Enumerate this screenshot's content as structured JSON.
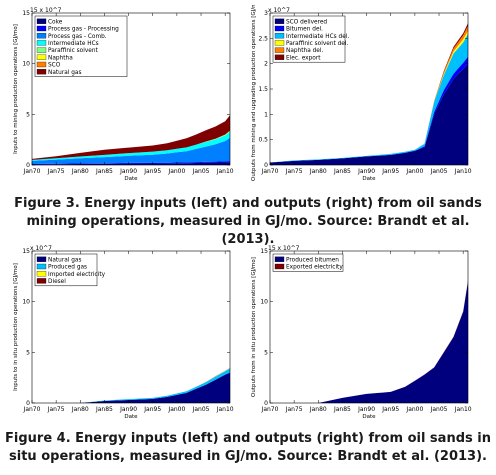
{
  "captions": {
    "figure3": "Figure 3. Energy inputs (left) and outputs (right) from oil sands mining operations, measured in GJ/mo. Source: Brandt et al. (2013).",
    "figure4": "Figure 4. Energy inputs (left) and outputs (right) from oil sands in situ operations, measured in GJ/mo. Source: Brandt et al. (2013)."
  },
  "chart_data": [
    {
      "type": "area",
      "id": "fig3-left",
      "xlabel": "Date",
      "ylabel": "Inputs to mining production operations [GJ/mo]",
      "exponent_label": "15 x 10^7",
      "xlim": [
        1970,
        2011
      ],
      "ylim": [
        0,
        15
      ],
      "y_ticks": [
        0,
        5,
        10,
        15
      ],
      "x_ticks": [
        "Jan70",
        "Jan75",
        "Jan80",
        "Jan85",
        "Jan90",
        "Jan95",
        "Jan00",
        "Jan05",
        "Jan10"
      ],
      "x": [
        1970,
        1975,
        1980,
        1985,
        1990,
        1995,
        1998,
        2000,
        2002,
        2004,
        2006,
        2008,
        2010,
        2011
      ],
      "series": [
        {
          "name": "Coke",
          "color": "#00007f",
          "values": [
            0.05,
            0.08,
            0.1,
            0.12,
            0.14,
            0.15,
            0.16,
            0.17,
            0.18,
            0.2,
            0.22,
            0.24,
            0.26,
            0.26
          ]
        },
        {
          "name": "Process gas - Processing",
          "color": "#0000ff",
          "values": [
            0.05,
            0.05,
            0.06,
            0.06,
            0.07,
            0.07,
            0.07,
            0.08,
            0.08,
            0.09,
            0.1,
            0.1,
            0.11,
            0.12
          ]
        },
        {
          "name": "Process gas - Comb.",
          "color": "#0080ff",
          "values": [
            0.3,
            0.4,
            0.5,
            0.6,
            0.7,
            0.8,
            0.9,
            1.0,
            1.1,
            1.3,
            1.5,
            1.7,
            2.0,
            2.3
          ]
        },
        {
          "name": "Intermediate HCs",
          "color": "#00ffff",
          "values": [
            0.1,
            0.14,
            0.18,
            0.22,
            0.26,
            0.3,
            0.32,
            0.35,
            0.38,
            0.42,
            0.46,
            0.5,
            0.55,
            0.6
          ]
        },
        {
          "name": "Paraffinic solvent",
          "color": "#7fff7f",
          "values": [
            0,
            0,
            0,
            0,
            0,
            0,
            0,
            0,
            0,
            0,
            0.02,
            0.03,
            0.04,
            0.05
          ]
        },
        {
          "name": "Naphtha",
          "color": "#ffff00",
          "values": [
            0,
            0,
            0,
            0,
            0,
            0,
            0,
            0,
            0,
            0,
            0.01,
            0.02,
            0.03,
            0.04
          ]
        },
        {
          "name": "SCO",
          "color": "#ff7f00",
          "values": [
            0,
            0,
            0,
            0,
            0,
            0,
            0,
            0,
            0,
            0,
            0.01,
            0.01,
            0.02,
            0.03
          ]
        },
        {
          "name": "Natural gas",
          "color": "#7f0000",
          "values": [
            0.1,
            0.2,
            0.35,
            0.5,
            0.55,
            0.6,
            0.7,
            0.8,
            0.9,
            1.0,
            1.1,
            1.2,
            1.3,
            1.5
          ]
        }
      ],
      "legend": "top-left"
    },
    {
      "type": "area",
      "id": "fig3-right",
      "xlabel": "Date",
      "ylabel": "Outputs from mining and upgrading production operations [GJ/mo]",
      "exponent_label": "x 10^7",
      "xlim": [
        1970,
        2011
      ],
      "ylim": [
        0,
        3
      ],
      "y_ticks": [
        0,
        0.5,
        1,
        1.5,
        2,
        2.5,
        3
      ],
      "x_ticks": [
        "Jan70",
        "Jan75",
        "Jan80",
        "Jan85",
        "Jan90",
        "Jan95",
        "Jan00",
        "Jan05",
        "Jan10"
      ],
      "x": [
        1970,
        1975,
        1980,
        1985,
        1990,
        1995,
        1998,
        2000,
        2002,
        2004,
        2006,
        2008,
        2010,
        2011
      ],
      "series": [
        {
          "name": "SCO delivered",
          "color": "#00007f",
          "values": [
            0.05,
            0.08,
            0.1,
            0.13,
            0.17,
            0.2,
            0.24,
            0.28,
            0.35,
            1.0,
            1.4,
            1.7,
            1.9,
            2.0
          ]
        },
        {
          "name": "Bitumen del.",
          "color": "#0000ff",
          "values": [
            0,
            0,
            0,
            0,
            0,
            0,
            0,
            0,
            0.02,
            0.05,
            0.08,
            0.1,
            0.12,
            0.14
          ]
        },
        {
          "name": "Intermediate HCs del.",
          "color": "#00bfff",
          "values": [
            0,
            0.01,
            0.01,
            0.01,
            0.01,
            0.02,
            0.02,
            0.02,
            0.05,
            0.2,
            0.3,
            0.4,
            0.4,
            0.45
          ]
        },
        {
          "name": "Paraffinic solvent del.",
          "color": "#ffff00",
          "values": [
            0,
            0,
            0,
            0,
            0,
            0,
            0,
            0,
            0,
            0,
            0.02,
            0.04,
            0.06,
            0.06
          ]
        },
        {
          "name": "Naphtha del.",
          "color": "#ff7f00",
          "values": [
            0,
            0,
            0,
            0,
            0,
            0,
            0,
            0,
            0,
            0.02,
            0.04,
            0.06,
            0.08,
            0.1
          ]
        },
        {
          "name": "Elec. export",
          "color": "#7f0000",
          "values": [
            0,
            0,
            0,
            0,
            0,
            0,
            0,
            0,
            0,
            0,
            0.02,
            0.03,
            0.04,
            0.05
          ]
        }
      ],
      "legend": "top-left"
    },
    {
      "type": "area",
      "id": "fig4-left",
      "xlabel": "Date",
      "ylabel": "Inputs to in situ production operations [GJ/mo]",
      "exponent_label": "x 10^7",
      "xlim": [
        1970,
        2011
      ],
      "ylim": [
        0,
        15
      ],
      "y_ticks": [
        0,
        5,
        10,
        15
      ],
      "x_ticks": [
        "Jan70",
        "Jan75",
        "Jan80",
        "Jan85",
        "Jan90",
        "Jan95",
        "Jan00",
        "Jan05",
        "Jan10"
      ],
      "x": [
        1970,
        1975,
        1980,
        1985,
        1990,
        1995,
        1998,
        2000,
        2002,
        2004,
        2006,
        2008,
        2010,
        2011
      ],
      "series": [
        {
          "name": "Natural gas",
          "color": "#00007f",
          "values": [
            0,
            0,
            0,
            0.2,
            0.3,
            0.4,
            0.6,
            0.8,
            1.0,
            1.4,
            1.8,
            2.3,
            2.8,
            3.0
          ]
        },
        {
          "name": "Produced gas",
          "color": "#00bfff",
          "values": [
            0,
            0,
            0,
            0.05,
            0.08,
            0.1,
            0.12,
            0.14,
            0.16,
            0.2,
            0.25,
            0.3,
            0.35,
            0.4
          ]
        },
        {
          "name": "Imported electricity",
          "color": "#ffff00",
          "values": [
            0,
            0,
            0,
            0,
            0,
            0,
            0,
            0,
            0,
            0,
            0.01,
            0.02,
            0.02,
            0.03
          ]
        },
        {
          "name": "Diesel",
          "color": "#7f0000",
          "values": [
            0,
            0,
            0,
            0,
            0,
            0,
            0,
            0,
            0,
            0.01,
            0.01,
            0.01,
            0.02,
            0.02
          ]
        }
      ],
      "legend": "top-left"
    },
    {
      "type": "area",
      "id": "fig4-right",
      "xlabel": "Date",
      "ylabel": "Outputs from in situ production operations [GJ/mo]",
      "exponent_label": "15 x 10^7",
      "xlim": [
        1970,
        2011
      ],
      "ylim": [
        0,
        15
      ],
      "y_ticks": [
        0,
        5,
        10,
        15
      ],
      "x_ticks": [
        "Jan70",
        "Jan75",
        "Jan80",
        "Jan85",
        "Jan90",
        "Jan95",
        "Jan00",
        "Jan05",
        "Jan10"
      ],
      "x": [
        1970,
        1975,
        1980,
        1985,
        1990,
        1995,
        1998,
        2000,
        2002,
        2004,
        2006,
        2008,
        2010,
        2011
      ],
      "series": [
        {
          "name": "Produced bitumen",
          "color": "#00007f",
          "values": [
            0,
            0,
            0,
            0.5,
            0.9,
            1.1,
            1.6,
            2.2,
            2.8,
            3.5,
            5.0,
            6.5,
            9.0,
            12.0
          ]
        },
        {
          "name": "Exported electricity",
          "color": "#7f0000",
          "values": [
            0,
            0,
            0,
            0,
            0,
            0,
            0,
            0,
            0.01,
            0.02,
            0.03,
            0.04,
            0.06,
            0.08
          ]
        }
      ],
      "legend": "top-left"
    }
  ]
}
